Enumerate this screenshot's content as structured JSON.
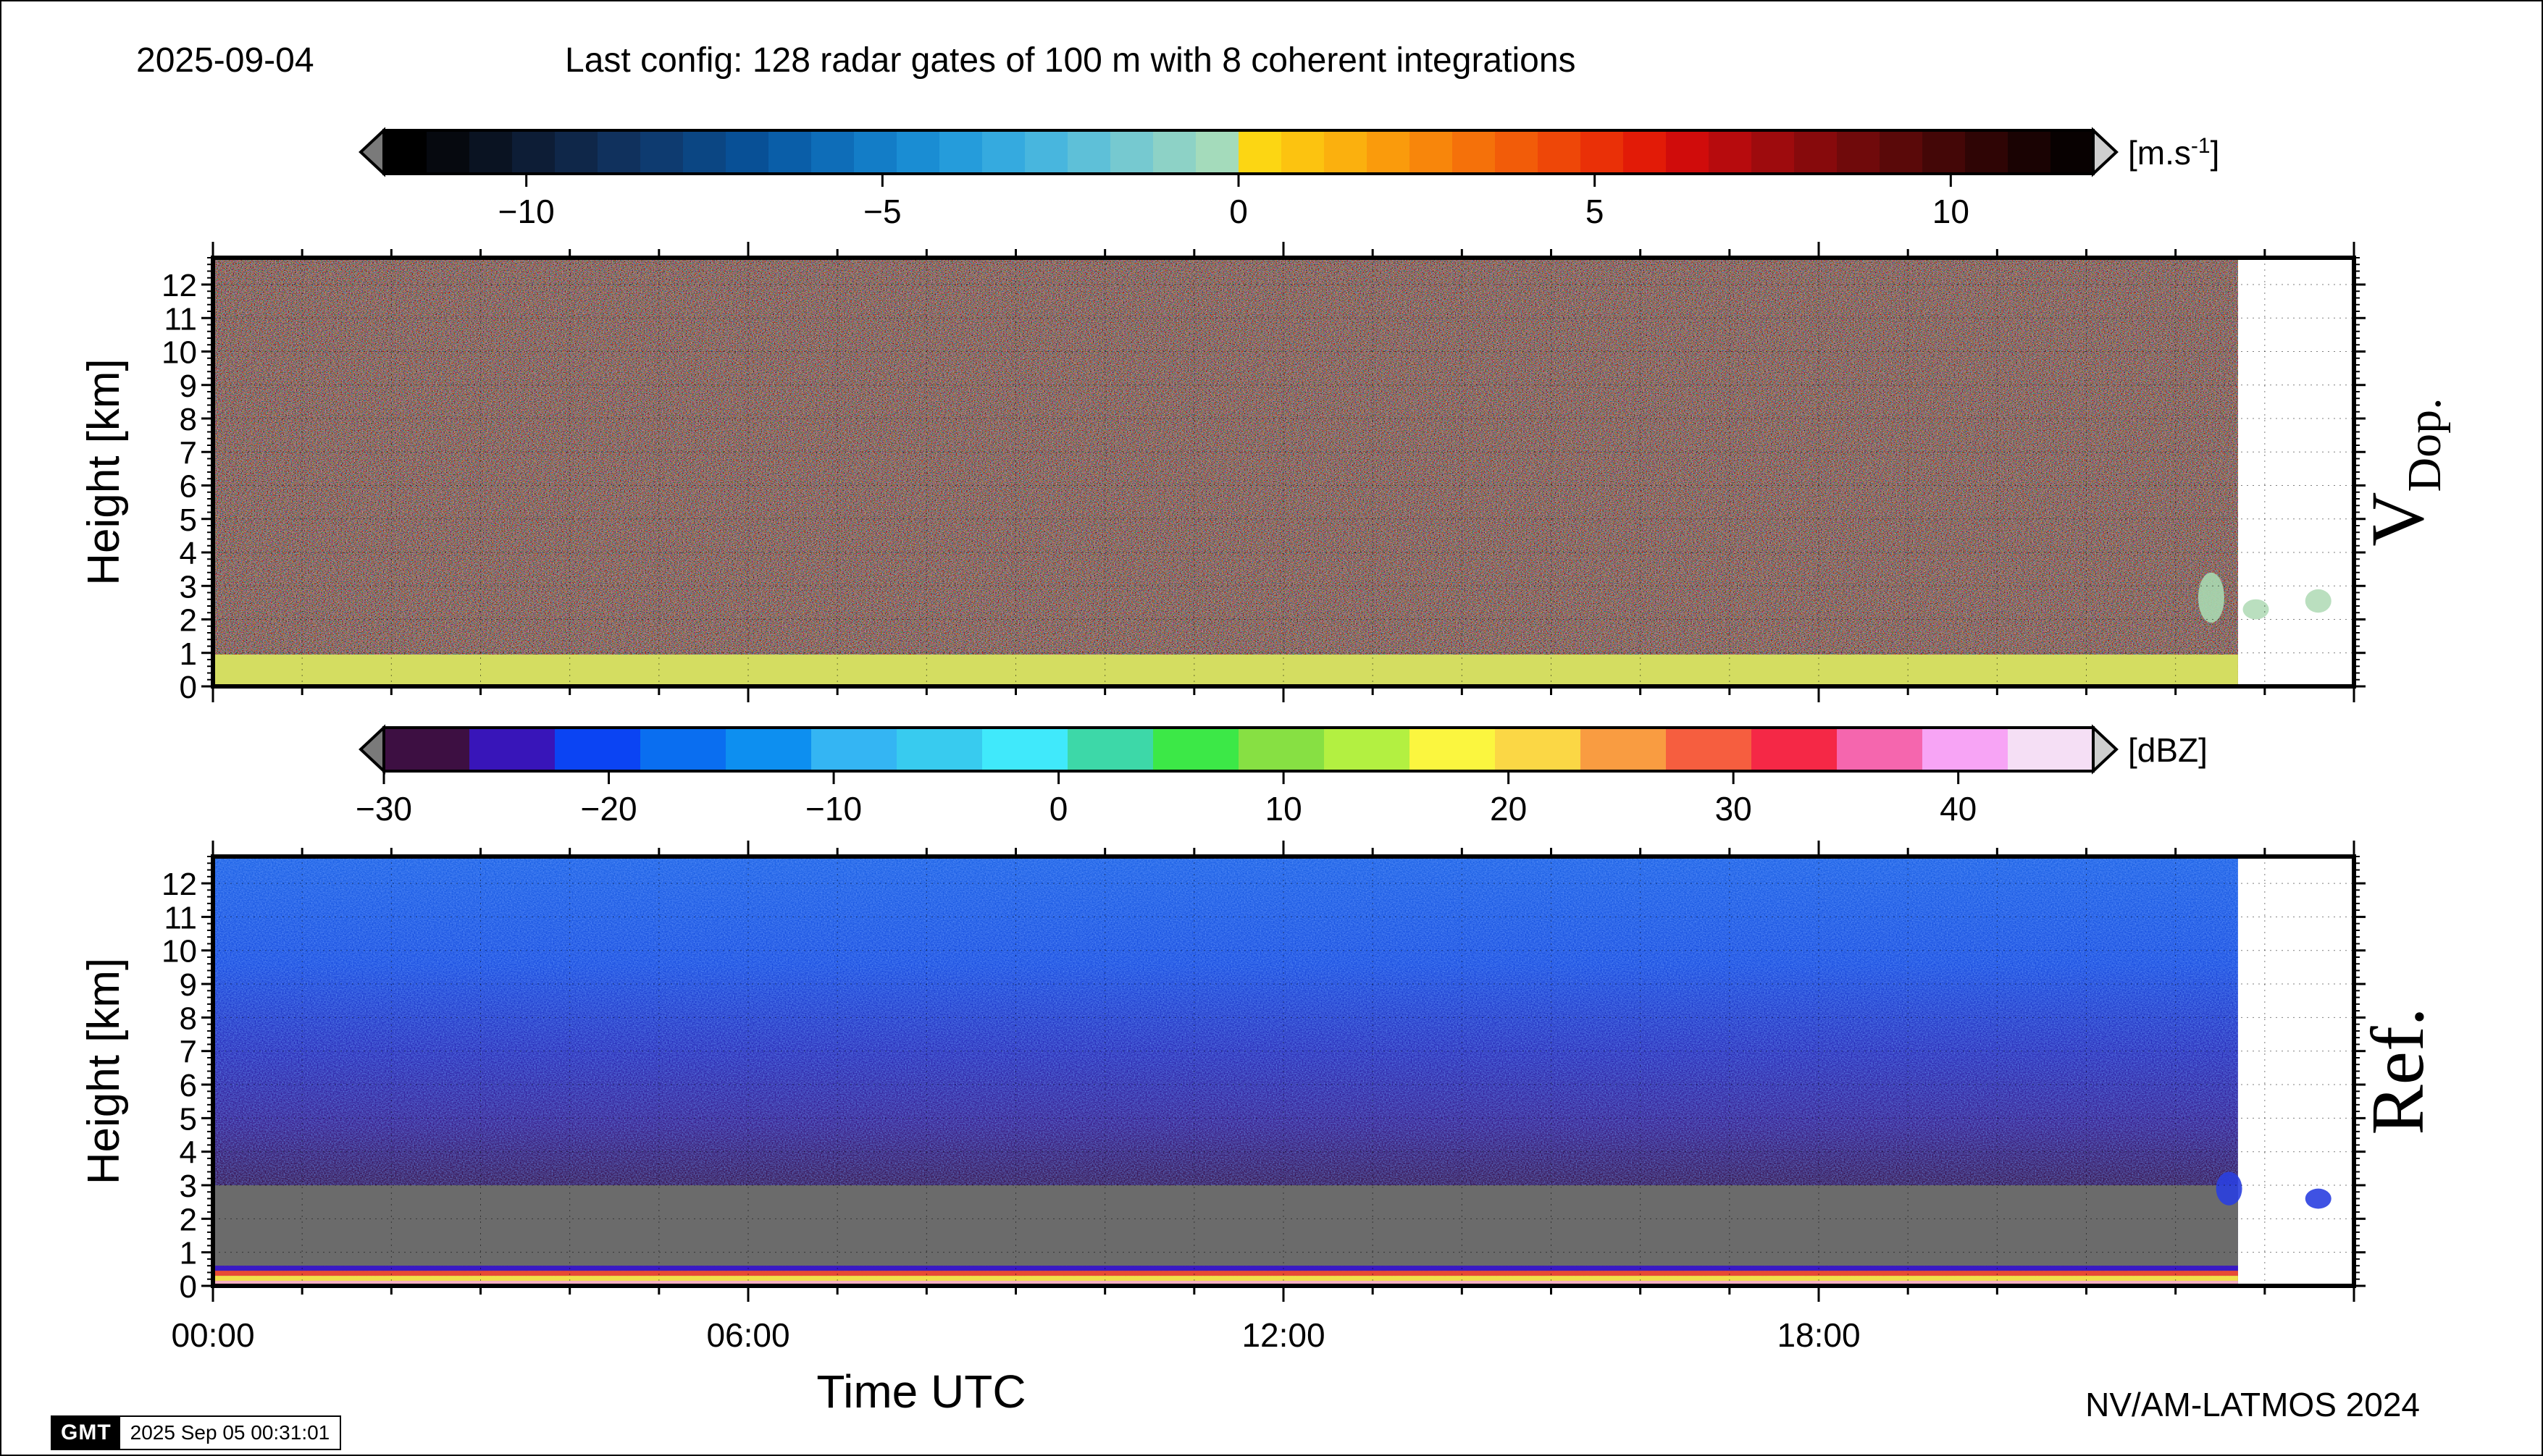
{
  "header": {
    "date": "2025-09-04",
    "config": "Last config: 128 radar gates of 100 m with 8 coherent integrations"
  },
  "footer": {
    "credit": "NV/AM-LATMOS 2024",
    "gmt_logo": "GMT",
    "gmt_timestamp": "2025 Sep 05 00:31:01"
  },
  "chart_data": [
    {
      "type": "heatmap",
      "panel_label": "V",
      "panel_label_sub": "Dop.",
      "ylabel": "Height [km]",
      "ylim": [
        0,
        12.8
      ],
      "yticks": [
        "0",
        "1",
        "2",
        "3",
        "4",
        "5",
        "6",
        "7",
        "8",
        "9",
        "10",
        "11",
        "12"
      ],
      "xlim_hours": [
        0,
        24
      ],
      "x_extent_hours": 22.7,
      "colorbar": {
        "unit_text": "[m.s",
        "unit_sup": "-1",
        "unit_close": "]",
        "range": [
          -12,
          12
        ],
        "ticks": [
          -10,
          -5,
          0,
          5,
          10
        ],
        "tick_labels": [
          "−10",
          "−5",
          "0",
          "5",
          "10"
        ],
        "colors": [
          "#000000",
          "#06090f",
          "#0a1322",
          "#0d1d36",
          "#0f2749",
          "#10315d",
          "#0e3b70",
          "#0b4683",
          "#085096",
          "#0a5ea8",
          "#0e6db8",
          "#137dc7",
          "#1a8dd3",
          "#259cdb",
          "#35aadf",
          "#48b6de",
          "#5ec0d8",
          "#76c9d0",
          "#8dd2c6",
          "#a4dbbb",
          "#fcd613",
          "#fcc310",
          "#fbb00e",
          "#fa9b0c",
          "#f8860b",
          "#f5710a",
          "#f25c09",
          "#ee4708",
          "#ea3007",
          "#e21b07",
          "#d00c0b",
          "#b70b0d",
          "#9e0b0d",
          "#870a0c",
          "#700a0b",
          "#5a0909",
          "#440707",
          "#2f0505",
          "#1a0303",
          "#080101"
        ]
      },
      "layers": [
        {
          "name": "ground clutter band",
          "y0_km": 0,
          "y1_km": 0.95,
          "color": "#d4dd61"
        }
      ],
      "features": [
        {
          "name": "late-day echo 1",
          "t_hours": 22.4,
          "y0_km": 1.9,
          "y1_km": 3.4,
          "color": "#a8d8b0"
        },
        {
          "name": "late-day echo 2",
          "t_hours": 22.9,
          "y0_km": 2.0,
          "y1_km": 2.6,
          "color": "#b2dcb8"
        },
        {
          "name": "late-day echo 3",
          "t_hours": 23.6,
          "y0_km": 2.2,
          "y1_km": 2.9,
          "color": "#b2dcb8"
        }
      ]
    },
    {
      "type": "heatmap",
      "panel_label": "Ref.",
      "ylabel": "Height [km]",
      "xlabel": "Time UTC",
      "xticks": [
        "00:00",
        "06:00",
        "12:00",
        "18:00"
      ],
      "ylim": [
        0,
        12.8
      ],
      "yticks": [
        "0",
        "1",
        "2",
        "3",
        "4",
        "5",
        "6",
        "7",
        "8",
        "9",
        "10",
        "11",
        "12"
      ],
      "xlim_hours": [
        0,
        24
      ],
      "x_extent_hours": 22.7,
      "colorbar": {
        "unit_text": "[dBZ]",
        "range": [
          -30,
          46
        ],
        "ticks": [
          -30,
          -20,
          -10,
          0,
          10,
          20,
          30,
          40
        ],
        "tick_labels": [
          "−30",
          "−20",
          "−10",
          "0",
          "10",
          "20",
          "30",
          "40"
        ],
        "colors": [
          "#3d0f42",
          "#3815b9",
          "#0b44f3",
          "#0a6ef0",
          "#0d8ff0",
          "#34b5f3",
          "#38cbef",
          "#40e9fb",
          "#3dd8a8",
          "#3ce847",
          "#87e043",
          "#b3f041",
          "#fbf63f",
          "#fbd745",
          "#f99c41",
          "#f65e3f",
          "#f52846",
          "#f566ae",
          "#f7a4f5",
          "#f5dff5"
        ]
      },
      "layers": [
        {
          "name": "no-signal region",
          "y0_km": 0.6,
          "y1_km": 3.0,
          "color": "#6b6b6b"
        },
        {
          "name": "near-surface band blue",
          "y0_km": 0.45,
          "y1_km": 0.6,
          "color": "#3a1ac4"
        },
        {
          "name": "near-surface band red",
          "y0_km": 0.3,
          "y1_km": 0.45,
          "color": "#e84a35"
        },
        {
          "name": "near-surface band yellow",
          "y0_km": 0.15,
          "y1_km": 0.3,
          "color": "#f2df4a"
        },
        {
          "name": "near-surface band pink",
          "y0_km": 0,
          "y1_km": 0.15,
          "color": "#f7b0c4"
        }
      ],
      "features": [
        {
          "name": "late-day echo 1",
          "t_hours": 22.6,
          "y0_km": 2.4,
          "y1_km": 3.4,
          "color": "#2a3fe0"
        },
        {
          "name": "late-day echo 2",
          "t_hours": 23.6,
          "y0_km": 2.3,
          "y1_km": 2.9,
          "color": "#2a3fe0"
        }
      ]
    }
  ]
}
